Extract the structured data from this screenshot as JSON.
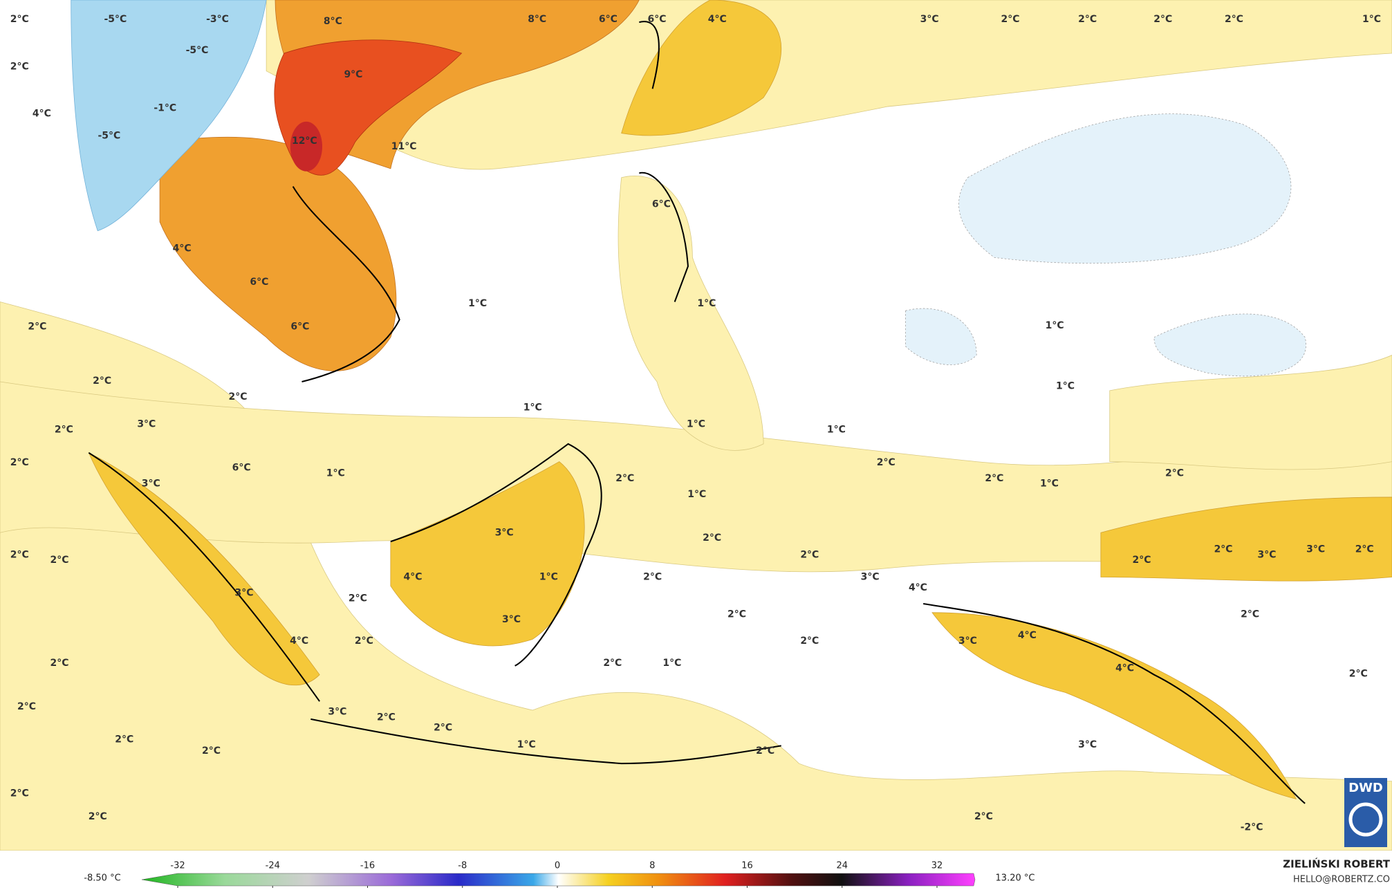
{
  "map": {
    "labels": [
      "-5°C",
      "-3°C",
      "8°C",
      "8°C",
      "6°C",
      "6°C",
      "4°C",
      "3°C",
      "2°C",
      "2°C",
      "2°C",
      "2°C",
      "1°C",
      "2°C",
      "-5°C",
      "2°C",
      "9°C",
      "-1°C",
      "4°C",
      "-5°C",
      "12°C",
      "11°C",
      "6°C",
      "4°C",
      "6°C",
      "1°C",
      "1°C",
      "2°C",
      "1°C",
      "6°C",
      "2°C",
      "1°C",
      "2°C",
      "1°C",
      "3°C",
      "2°C",
      "1°C",
      "1°C",
      "2°C",
      "2°C",
      "6°C",
      "1°C",
      "2°C",
      "2°C",
      "2°C",
      "1°C",
      "3°C",
      "1°C",
      "3°C",
      "2°C",
      "2°C",
      "2°C",
      "2°C",
      "2°C",
      "3°C",
      "3°C",
      "2°C",
      "2°C",
      "1°C",
      "4°C",
      "2°C",
      "3°C",
      "4°C",
      "3°C",
      "2°C",
      "2°C",
      "3°C",
      "2°C",
      "4°C",
      "2°C",
      "2°C",
      "3°C",
      "4°C",
      "2°C",
      "2°C",
      "1°C",
      "4°C",
      "2°C",
      "2°C",
      "3°C",
      "2°C",
      "2°C",
      "2°C",
      "1°C",
      "2°C",
      "3°C",
      "2°C",
      "2°C",
      "2°C",
      "2°C",
      "-2°C"
    ]
  },
  "colorbar": {
    "min_label": "-8.50 °C",
    "max_label": "13.20 °C",
    "ticks": [
      -32,
      -24,
      -16,
      -8,
      0,
      8,
      16,
      24,
      32
    ]
  },
  "credit": {
    "logo": "DWD",
    "author": "ZIELIŃSKI ROBERT",
    "contact": "HELLO@ROBERTZ.CO"
  }
}
